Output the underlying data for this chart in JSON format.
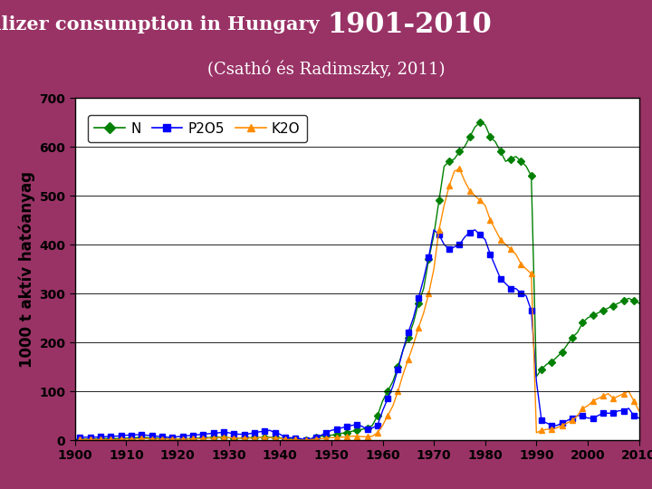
{
  "title_part1": "Fertilizer consumption in Hungary ",
  "title_part2": "1901-2010",
  "subtitle": "(Csathó és Radimszky, 2011)",
  "ylabel": "1000 t aktív hatóanyag",
  "bg_color": "#993366",
  "plot_bg": "#ffffff",
  "N_color": "#008000",
  "P2O5_color": "#0000FF",
  "K2O_color": "#FF8C00",
  "N_marker": "D",
  "P2O5_marker": "s",
  "K2O_marker": "^",
  "ylim": [
    0,
    700
  ],
  "xlim": [
    1900,
    2010
  ],
  "yticks": [
    0,
    100,
    200,
    300,
    400,
    500,
    600,
    700
  ],
  "xticks": [
    1900,
    1910,
    1920,
    1930,
    1940,
    1950,
    1960,
    1970,
    1980,
    1990,
    2000,
    2010
  ],
  "N_x": [
    1901,
    1902,
    1903,
    1904,
    1905,
    1906,
    1907,
    1908,
    1909,
    1910,
    1911,
    1912,
    1913,
    1914,
    1915,
    1916,
    1917,
    1918,
    1919,
    1920,
    1921,
    1922,
    1923,
    1924,
    1925,
    1926,
    1927,
    1928,
    1929,
    1930,
    1931,
    1932,
    1933,
    1934,
    1935,
    1936,
    1937,
    1938,
    1939,
    1940,
    1941,
    1942,
    1943,
    1944,
    1945,
    1946,
    1947,
    1948,
    1949,
    1950,
    1951,
    1952,
    1953,
    1954,
    1955,
    1956,
    1957,
    1958,
    1959,
    1960,
    1961,
    1962,
    1963,
    1964,
    1965,
    1966,
    1967,
    1968,
    1969,
    1970,
    1971,
    1972,
    1973,
    1974,
    1975,
    1976,
    1977,
    1978,
    1979,
    1980,
    1981,
    1982,
    1983,
    1984,
    1985,
    1986,
    1987,
    1988,
    1989,
    1990,
    1991,
    1992,
    1993,
    1994,
    1995,
    1996,
    1997,
    1998,
    1999,
    2000,
    2001,
    2002,
    2003,
    2004,
    2005,
    2006,
    2007,
    2008,
    2009,
    2010
  ],
  "N_y": [
    2,
    2,
    2,
    2,
    3,
    3,
    3,
    3,
    4,
    4,
    4,
    5,
    5,
    5,
    4,
    4,
    3,
    3,
    3,
    2,
    3,
    3,
    4,
    4,
    5,
    5,
    6,
    6,
    5,
    5,
    4,
    4,
    5,
    5,
    5,
    5,
    6,
    6,
    5,
    5,
    2,
    2,
    2,
    1,
    0,
    2,
    5,
    8,
    10,
    10,
    12,
    14,
    15,
    18,
    20,
    22,
    25,
    30,
    50,
    80,
    100,
    120,
    150,
    185,
    210,
    240,
    280,
    310,
    370,
    420,
    490,
    560,
    570,
    575,
    590,
    600,
    620,
    640,
    650,
    645,
    620,
    610,
    590,
    570,
    575,
    580,
    570,
    560,
    540,
    130,
    145,
    155,
    160,
    170,
    180,
    195,
    210,
    220,
    240,
    250,
    255,
    260,
    265,
    270,
    275,
    280,
    285,
    290,
    285,
    280
  ],
  "P2O5_x": [
    1901,
    1902,
    1903,
    1904,
    1905,
    1906,
    1907,
    1908,
    1909,
    1910,
    1911,
    1912,
    1913,
    1914,
    1915,
    1916,
    1917,
    1918,
    1919,
    1920,
    1921,
    1922,
    1923,
    1924,
    1925,
    1926,
    1927,
    1928,
    1929,
    1930,
    1931,
    1932,
    1933,
    1934,
    1935,
    1936,
    1937,
    1938,
    1939,
    1940,
    1941,
    1942,
    1943,
    1944,
    1945,
    1946,
    1947,
    1948,
    1949,
    1950,
    1951,
    1952,
    1953,
    1954,
    1955,
    1956,
    1957,
    1958,
    1959,
    1960,
    1961,
    1962,
    1963,
    1964,
    1965,
    1966,
    1967,
    1968,
    1969,
    1970,
    1971,
    1972,
    1973,
    1974,
    1975,
    1976,
    1977,
    1978,
    1979,
    1980,
    1981,
    1982,
    1983,
    1984,
    1985,
    1986,
    1987,
    1988,
    1989,
    1990,
    1991,
    1992,
    1993,
    1994,
    1995,
    1996,
    1997,
    1998,
    1999,
    2000,
    2001,
    2002,
    2003,
    2004,
    2005,
    2006,
    2007,
    2008,
    2009,
    2010
  ],
  "P2O5_y": [
    5,
    6,
    6,
    6,
    7,
    7,
    8,
    8,
    9,
    10,
    10,
    11,
    11,
    10,
    9,
    8,
    7,
    6,
    6,
    7,
    8,
    9,
    10,
    11,
    12,
    13,
    14,
    15,
    16,
    15,
    13,
    12,
    12,
    13,
    15,
    17,
    18,
    20,
    15,
    12,
    5,
    5,
    4,
    3,
    0,
    3,
    6,
    10,
    15,
    20,
    22,
    25,
    28,
    30,
    32,
    28,
    22,
    25,
    30,
    60,
    85,
    110,
    145,
    185,
    220,
    250,
    290,
    330,
    375,
    430,
    420,
    400,
    390,
    395,
    400,
    415,
    425,
    430,
    420,
    410,
    380,
    355,
    330,
    320,
    310,
    310,
    300,
    295,
    265,
    120,
    40,
    35,
    30,
    30,
    35,
    40,
    45,
    50,
    50,
    45,
    45,
    50,
    55,
    55,
    55,
    60,
    60,
    65,
    50,
    45
  ],
  "K2O_x": [
    1901,
    1902,
    1903,
    1904,
    1905,
    1906,
    1907,
    1908,
    1909,
    1910,
    1911,
    1912,
    1913,
    1914,
    1915,
    1916,
    1917,
    1918,
    1919,
    1920,
    1921,
    1922,
    1923,
    1924,
    1925,
    1926,
    1927,
    1928,
    1929,
    1930,
    1931,
    1932,
    1933,
    1934,
    1935,
    1936,
    1937,
    1938,
    1939,
    1940,
    1941,
    1942,
    1943,
    1944,
    1945,
    1946,
    1947,
    1948,
    1949,
    1950,
    1951,
    1952,
    1953,
    1954,
    1955,
    1956,
    1957,
    1958,
    1959,
    1960,
    1961,
    1962,
    1963,
    1964,
    1965,
    1966,
    1967,
    1968,
    1969,
    1970,
    1971,
    1972,
    1973,
    1974,
    1975,
    1976,
    1977,
    1978,
    1979,
    1980,
    1981,
    1982,
    1983,
    1984,
    1985,
    1986,
    1987,
    1988,
    1989,
    1990,
    1991,
    1992,
    1993,
    1994,
    1995,
    1996,
    1997,
    1998,
    1999,
    2000,
    2001,
    2002,
    2003,
    2004,
    2005,
    2006,
    2007,
    2008,
    2009,
    2010
  ],
  "K2O_y": [
    1,
    1,
    1,
    1,
    1,
    1,
    1,
    1,
    2,
    2,
    2,
    2,
    3,
    3,
    2,
    2,
    2,
    2,
    2,
    2,
    2,
    2,
    3,
    3,
    3,
    4,
    4,
    5,
    5,
    5,
    4,
    4,
    4,
    4,
    4,
    5,
    5,
    5,
    4,
    4,
    1,
    1,
    1,
    0,
    0,
    1,
    2,
    3,
    4,
    5,
    5,
    6,
    7,
    8,
    8,
    7,
    7,
    8,
    15,
    30,
    50,
    70,
    100,
    135,
    165,
    195,
    230,
    260,
    300,
    350,
    430,
    480,
    520,
    550,
    555,
    530,
    510,
    500,
    490,
    480,
    450,
    430,
    410,
    400,
    390,
    380,
    360,
    350,
    340,
    15,
    20,
    22,
    22,
    25,
    30,
    35,
    40,
    50,
    65,
    70,
    80,
    85,
    90,
    95,
    85,
    90,
    95,
    100,
    80,
    60
  ]
}
